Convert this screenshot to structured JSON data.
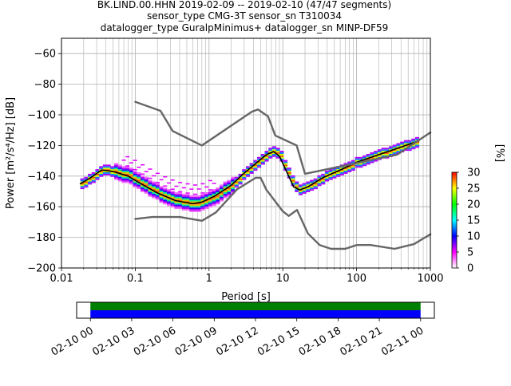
{
  "chart_data": [
    {
      "type": "heatmap",
      "title_lines": [
        "BK.LIND.00.HHN   2019-02-09 -- 2019-02-10  (47/47 segments)",
        "sensor_type CMG-3T sensor_sn T310034",
        "datalogger_type GuralpMinimus+ datalogger_sn MINP-DF59"
      ],
      "xlabel": "Period [s]",
      "ylabel": "Power [m²/s⁴/Hz] [dB]",
      "x_scale": "log",
      "xlim": [
        0.01,
        1000
      ],
      "ylim": [
        -200,
        -50
      ],
      "x_ticks": [
        0.01,
        0.1,
        1,
        10,
        100,
        1000
      ],
      "x_tick_labels": [
        "0.01",
        "0.1",
        "1",
        "10",
        "100",
        "1000"
      ],
      "y_ticks": [
        -200,
        -180,
        -160,
        -140,
        -120,
        -100,
        -80,
        -60
      ],
      "y_tick_labels": [
        "−200",
        "−180",
        "−160",
        "−140",
        "−120",
        "−100",
        "−80",
        "−60"
      ],
      "grid": true,
      "colorbar": {
        "label": "[%]",
        "range": [
          0,
          30
        ],
        "ticks": [
          0,
          5,
          10,
          15,
          20,
          25,
          30
        ],
        "tick_labels": [
          "0",
          "5",
          "10",
          "15",
          "20",
          "25",
          "30"
        ],
        "colors": [
          "#ffffff",
          "#ff00ff",
          "#0000ff",
          "#00ffff",
          "#00ff00",
          "#ffff00",
          "#ff0000"
        ]
      },
      "series": [
        {
          "role": "mode",
          "color": "#000000",
          "points": [
            [
              0.018,
              -145
            ],
            [
              0.025,
              -141
            ],
            [
              0.035,
              -136
            ],
            [
              0.05,
              -137
            ],
            [
              0.08,
              -140
            ],
            [
              0.12,
              -145
            ],
            [
              0.2,
              -151
            ],
            [
              0.35,
              -156
            ],
            [
              0.6,
              -158
            ],
            [
              0.8,
              -157
            ],
            [
              1.2,
              -153
            ],
            [
              2,
              -146
            ],
            [
              3,
              -138
            ],
            [
              4.5,
              -131
            ],
            [
              6,
              -126
            ],
            [
              7.5,
              -124
            ],
            [
              9,
              -127
            ],
            [
              11,
              -136
            ],
            [
              14,
              -147
            ],
            [
              17,
              -149
            ],
            [
              22,
              -147
            ],
            [
              35,
              -141
            ],
            [
              60,
              -136
            ],
            [
              100,
              -131
            ],
            [
              200,
              -126
            ],
            [
              400,
              -121
            ],
            [
              700,
              -117
            ]
          ]
        },
        {
          "role": "noise-model-high",
          "color": "#666666",
          "points": [
            [
              0.1,
              -91.5
            ],
            [
              0.22,
              -97.4
            ],
            [
              0.32,
              -110.5
            ],
            [
              0.8,
              -120
            ],
            [
              3.8,
              -98
            ],
            [
              4.6,
              -96.5
            ],
            [
              6.3,
              -101
            ],
            [
              7.9,
              -113.5
            ],
            [
              15.4,
              -120
            ],
            [
              20,
              -138.5
            ],
            [
              354.8,
              -126
            ],
            [
              1000,
              -111.5
            ]
          ]
        },
        {
          "role": "noise-model-low",
          "color": "#666666",
          "points": [
            [
              0.1,
              -168
            ],
            [
              0.17,
              -166.7
            ],
            [
              0.4,
              -166.7
            ],
            [
              0.8,
              -169.2
            ],
            [
              1.24,
              -163.7
            ],
            [
              2.4,
              -148.6
            ],
            [
              4.3,
              -141.1
            ],
            [
              5,
              -141.1
            ],
            [
              6,
              -149
            ],
            [
              10,
              -163
            ],
            [
              12,
              -166
            ],
            [
              15.6,
              -162.1
            ],
            [
              21.9,
              -177.5
            ],
            [
              31.6,
              -185
            ],
            [
              45,
              -187.5
            ],
            [
              70,
              -187.5
            ],
            [
              101,
              -185
            ],
            [
              154,
              -185
            ],
            [
              328,
              -187.5
            ],
            [
              600,
              -184.4
            ],
            [
              1000,
              -178
            ]
          ]
        }
      ]
    },
    {
      "type": "timeline",
      "x_tick_labels": [
        "02-10 00",
        "02-10 03",
        "02-10 06",
        "02-10 09",
        "02-10 12",
        "02-10 15",
        "02-10 18",
        "02-10 21",
        "02-11 00"
      ],
      "xlim_hours": [
        -1,
        25
      ],
      "tracks": [
        {
          "color": "#008000",
          "start_hour": 0,
          "end_hour": 24
        },
        {
          "color": "#0000ff",
          "start_hour": 0,
          "end_hour": 24
        }
      ]
    }
  ]
}
